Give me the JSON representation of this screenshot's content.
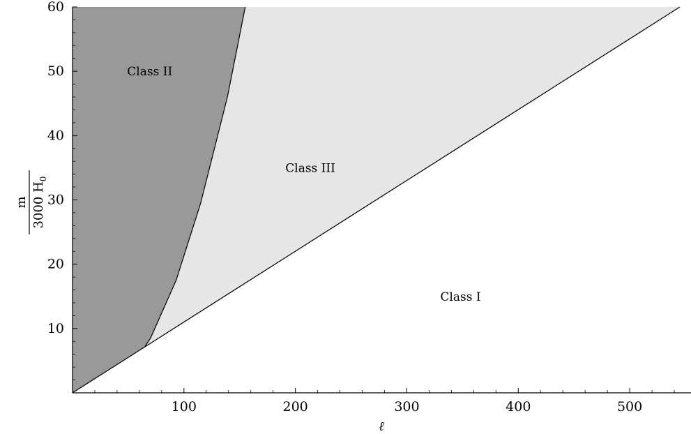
{
  "chart_data": {
    "type": "area",
    "xlabel": "ℓ",
    "ylabel": {
      "numerator": "m",
      "denominator": "3000 H",
      "subscript": "0"
    },
    "xlim": [
      0,
      555
    ],
    "ylim": [
      0,
      60
    ],
    "xticks": [
      100,
      200,
      300,
      400,
      500
    ],
    "yticks": [
      10,
      20,
      30,
      40,
      50,
      60
    ],
    "grid": false,
    "boundaries": [
      {
        "x": [
          0,
          545
        ],
        "y": [
          0,
          60
        ]
      },
      {
        "x": [
          65,
          70,
          93,
          115,
          139,
          155
        ],
        "y": [
          7.2,
          8.5,
          17.5,
          29.5,
          46,
          60
        ]
      }
    ],
    "regions": [
      {
        "label": "Class I",
        "fill": "#ffffff",
        "label_at": [
          330,
          15
        ]
      },
      {
        "label": "Class II",
        "fill": "#999999",
        "label_at": [
          49,
          50
        ]
      },
      {
        "label": "Class III",
        "fill": "#e6e6e6",
        "label_at": [
          191,
          35
        ]
      }
    ]
  }
}
